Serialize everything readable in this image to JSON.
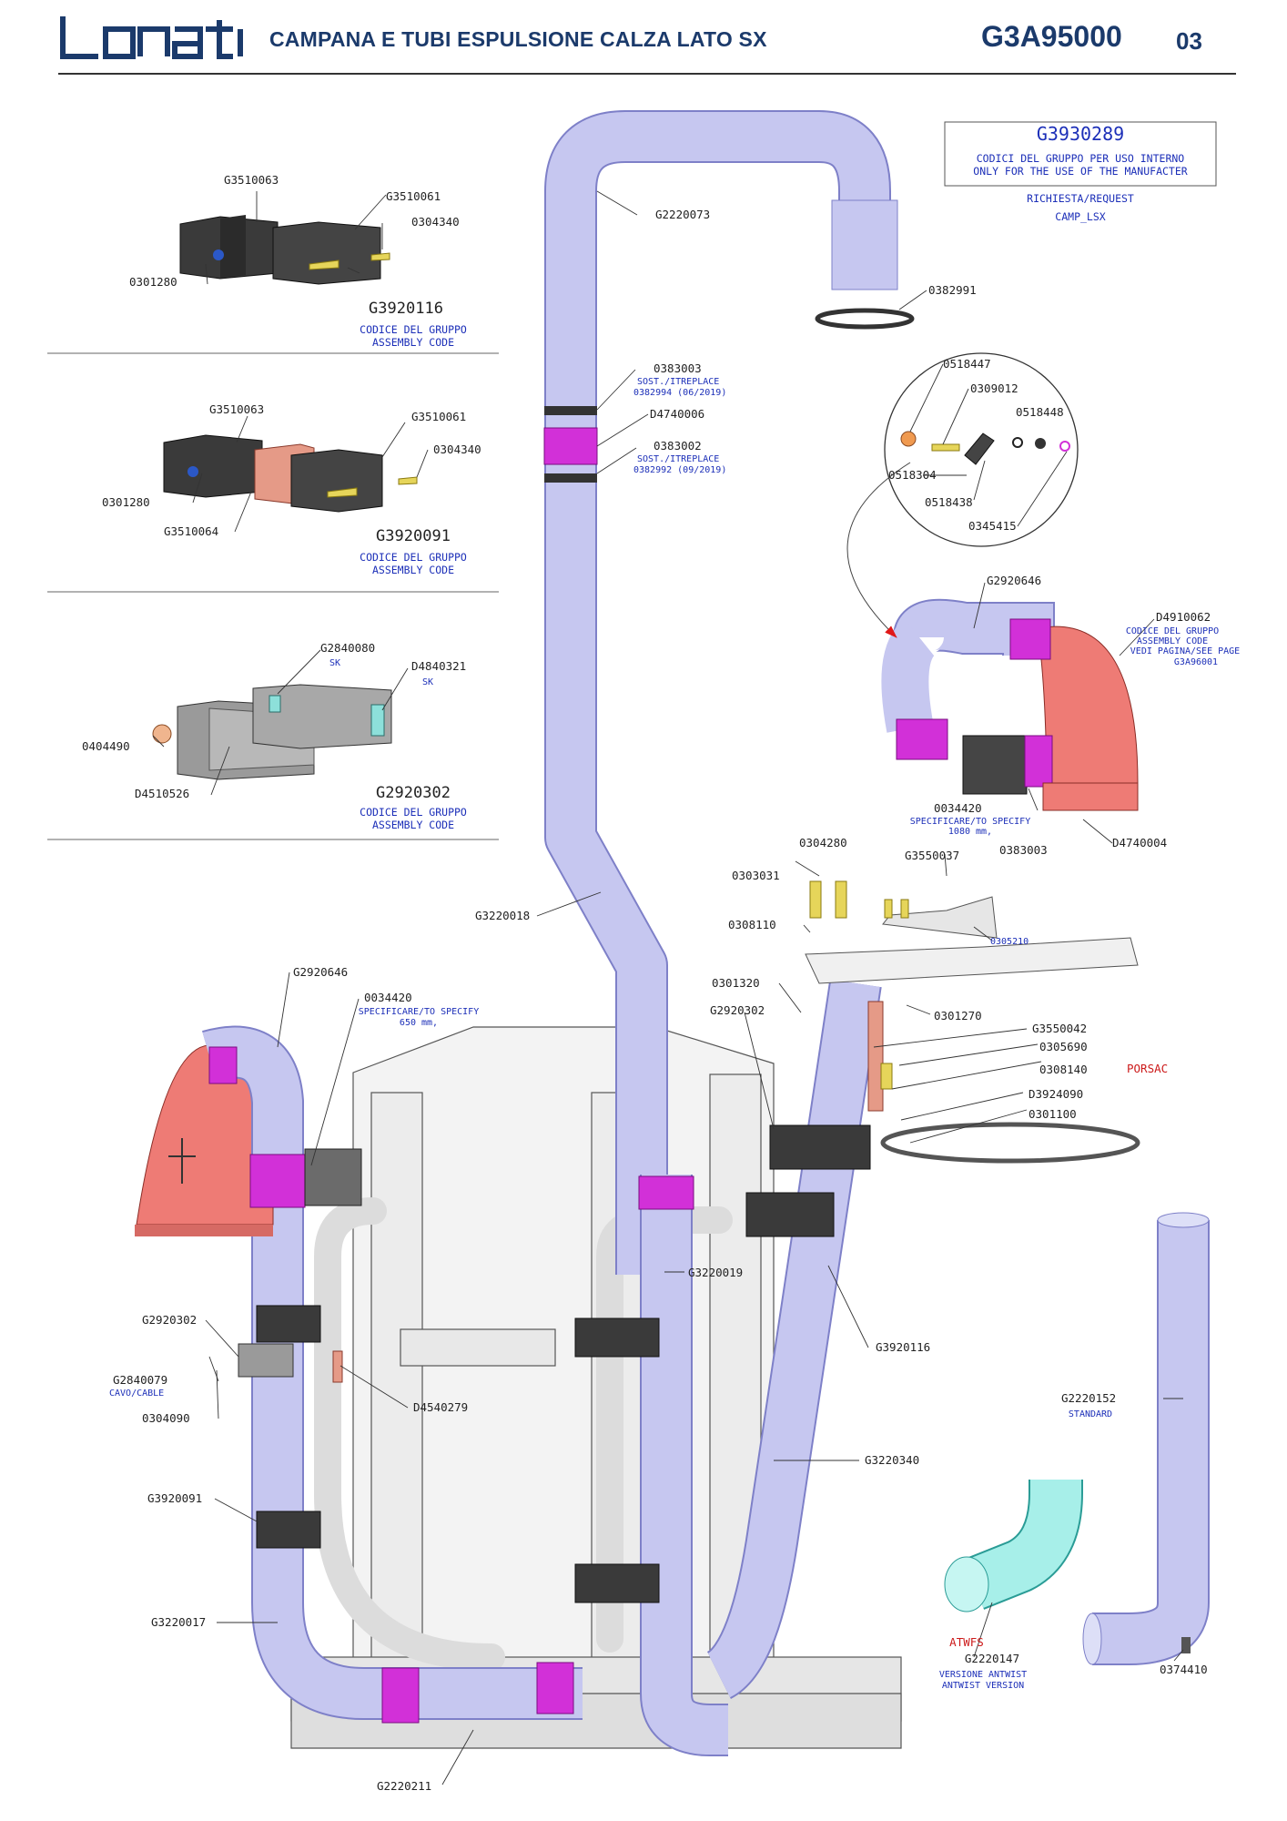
{
  "header": {
    "title": "CAMPANA E TUBI ESPULSIONE CALZA LATO SX",
    "code": "G3A95000",
    "page": "03"
  },
  "internal_box": {
    "code": "G3930289",
    "line1": "CODICI DEL GRUPPO PER USO INTERNO",
    "line2": "ONLY FOR THE USE OF THE MANUFACTER",
    "request1": "RICHIESTA/REQUEST",
    "request2": "CAMP_LSX"
  },
  "kits": [
    {
      "code": "G3920116",
      "line1": "CODICE DEL GRUPPO",
      "line2": "ASSEMBLY CODE",
      "parts": [
        "G3510063",
        "G3510061",
        "0304340",
        "0301280"
      ]
    },
    {
      "code": "G3920091",
      "line1": "CODICE DEL GRUPPO",
      "line2": "ASSEMBLY CODE",
      "parts": [
        "G3510063",
        "G3510061",
        "0304340",
        "0301280",
        "G3510064"
      ]
    },
    {
      "code": "G2920302",
      "line1": "CODICE DEL GRUPPO",
      "line2": "ASSEMBLY CODE",
      "parts": [
        "G2840080",
        "SK",
        "D4840321",
        "SK",
        "0404490",
        "D4510526"
      ]
    }
  ],
  "labels": {
    "g2220073": "G2220073",
    "p0382991": "0382991",
    "p0383003a": "0383003",
    "sost1a": "SOST./ITREPLACE",
    "sost1b": "0382994 (06/2019)",
    "d4740006": "D4740006",
    "p0383002": "0383002",
    "sost2a": "SOST./ITREPLACE",
    "sost2b": "0382992 (09/2019)",
    "p0518447": "0518447",
    "p0309012": "0309012",
    "p0518448": "0518448",
    "p0518304": "0518304",
    "p0518438": "0518438",
    "p0345415": "0345415",
    "g2920646a": "G2920646",
    "d4910062": "D4910062",
    "d4910062_l1": "CODICE DEL GRUPPO",
    "d4910062_l2": "ASSEMBLY CODE",
    "d4910062_l3": "VEDI PAGINA/SEE PAGE",
    "d4910062_l4": "G3A96001",
    "p0034420a": "0034420",
    "spec1a": "SPECIFICARE/TO SPECIFY",
    "spec1b": "1080 mm,",
    "p0383003b": "0383003",
    "d4740004": "D4740004",
    "p0304280": "0304280",
    "g3550037": "G3550037",
    "p0303031": "0303031",
    "p0308110": "0308110",
    "p0305210": "0305210",
    "g3220018": "G3220018",
    "p0301320": "0301320",
    "g2920302b": "G2920302",
    "p0301270": "0301270",
    "g3550042": "G3550042",
    "p0305690": "0305690",
    "p0308140": "0308140",
    "porsac": "PORSAC",
    "d3924090": "D3924090",
    "p0301100": "0301100",
    "g2920646b": "G2920646",
    "p0034420b": "0034420",
    "spec2a": "SPECIFICARE/TO SPECIFY",
    "spec2b": "650 mm,",
    "g3220019": "G3220019",
    "g3920116b": "G3920116",
    "g2920302c": "G2920302",
    "g2840079": "G2840079",
    "cavo": "CAVO/CABLE",
    "p0304090": "0304090",
    "d4540279": "D4540279",
    "g2220152": "G2220152",
    "standard": "STANDARD",
    "g3220340": "G3220340",
    "g3920091b": "G3920091",
    "atwfs": "ATWFS",
    "g2220147": "G2220147",
    "antw1": "VERSIONE ANTWIST",
    "antw2": "ANTWIST VERSION",
    "p0374410": "0374410",
    "g3220017": "G3220017",
    "g2220211": "G2220211"
  },
  "colors": {
    "tube": "#c6c7f0",
    "tube_stroke": "#7e80c8",
    "clamp": "#d230d8",
    "bell": "#ee7b75",
    "bracket": "#444444",
    "frame": "#f3f3f3",
    "cyan": "#a7efe9",
    "brand": "#1b3a6b",
    "blue_text": "#1c2fb8"
  }
}
